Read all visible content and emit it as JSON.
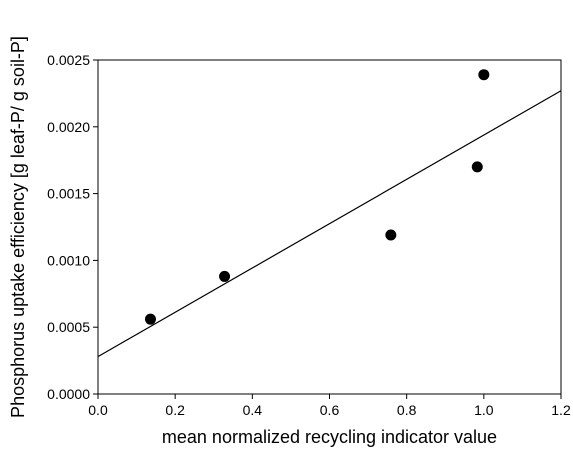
{
  "chart_data": {
    "type": "scatter",
    "title": "",
    "xlabel": "mean normalized recycling indicator value",
    "ylabel": "Phosphorus uptake efficiency [g leaf-P/ g soil-P]",
    "xlim": [
      0.0,
      1.2
    ],
    "ylim": [
      0.0,
      0.0025
    ],
    "xticks": [
      "0.0",
      "0.2",
      "0.4",
      "0.6",
      "0.8",
      "1.0",
      "1.2"
    ],
    "yticks": [
      "0.0000",
      "0.0005",
      "0.0010",
      "0.0015",
      "0.0020",
      "0.0025"
    ],
    "grid": false,
    "legend": "none",
    "series": [
      {
        "points": [
          {
            "x": 0.136,
            "y": 0.00056
          },
          {
            "x": 0.328,
            "y": 0.00088
          },
          {
            "x": 0.759,
            "y": 0.00119
          },
          {
            "x": 0.983,
            "y": 0.0017
          },
          {
            "x": 1.0,
            "y": 0.00239
          }
        ],
        "color": "#000000"
      }
    ],
    "fit_line": {
      "x": [
        0.0,
        1.2
      ],
      "y": [
        0.00028,
        0.00227
      ],
      "color": "#000000"
    }
  }
}
